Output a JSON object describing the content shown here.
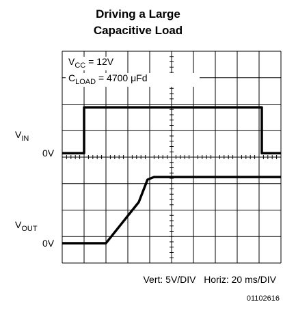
{
  "chart_data": {
    "type": "line",
    "title": [
      "Driving a Large",
      "Capacitive Load"
    ],
    "xlim": [
      0,
      10
    ],
    "ylim": [
      0,
      8
    ],
    "xticks": [
      0,
      1,
      2,
      3,
      4,
      5,
      6,
      7,
      8,
      9,
      10
    ],
    "yticks": [
      0,
      1,
      2,
      3,
      4,
      5,
      6,
      7,
      8
    ],
    "grid": true,
    "color": "#000000",
    "series": [
      {
        "label": "V",
        "label_sub": "IN",
        "zero_label": "0V",
        "x": [
          0,
          1,
          1,
          9.125,
          9.125,
          10
        ],
        "values": [
          4.15,
          4.15,
          5.88,
          5.88,
          4.15,
          4.15
        ]
      },
      {
        "label": "V",
        "label_sub": "OUT",
        "zero_label": "0V",
        "x": [
          0,
          2,
          3.5,
          3.9,
          4.2,
          10
        ],
        "values": [
          0.75,
          0.75,
          2.3,
          3.15,
          3.25,
          3.25
        ]
      }
    ],
    "annotations": [
      {
        "main": "V",
        "sub": "CC",
        "rest": " = 12V"
      },
      {
        "main": "C",
        "sub": "LOAD",
        "rest": " = 4700 μFd"
      }
    ],
    "footer": "Vert: 5V/DIV   Horiz: 20 ms/DIV",
    "figure_id": "01102616"
  }
}
